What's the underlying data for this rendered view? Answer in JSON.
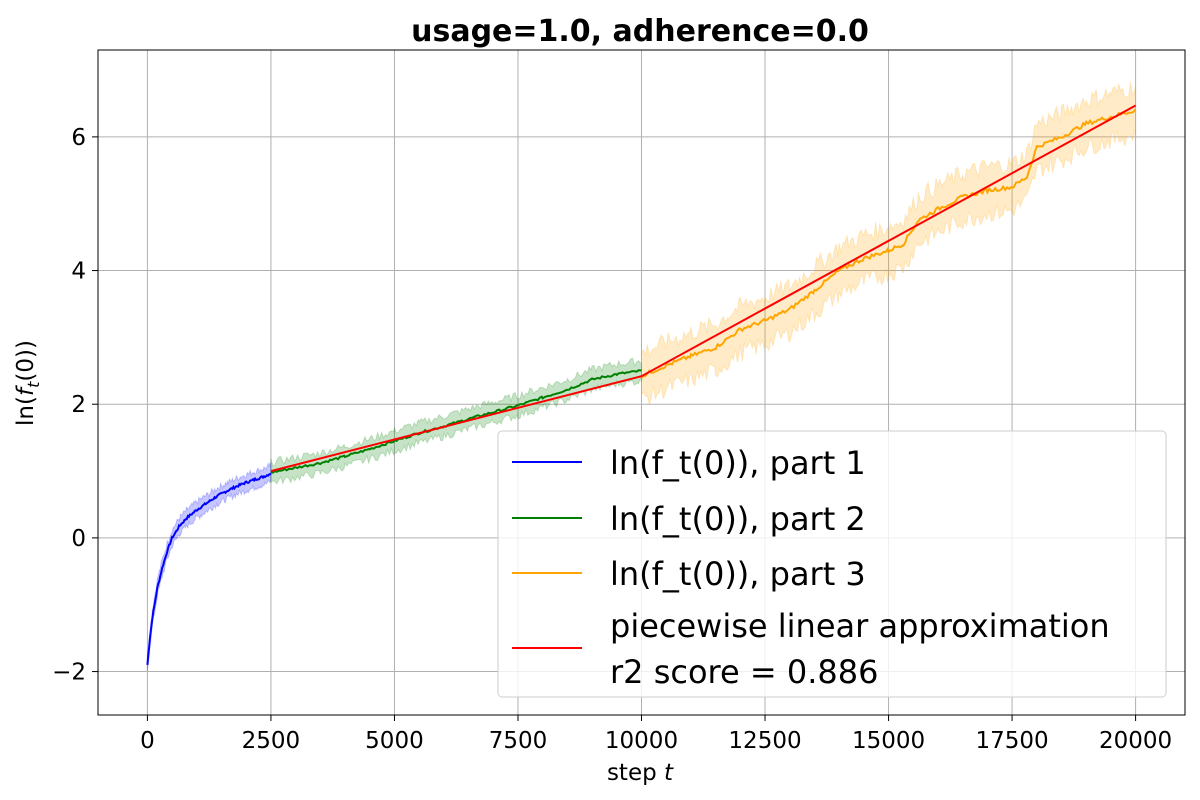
{
  "chart_data": {
    "type": "line",
    "title": "usage=1.0, adherence=0.0",
    "xlabel": "step t",
    "ylabel": "ln(f_t(0))",
    "xlim": [
      -1000,
      21000
    ],
    "ylim": [
      -2.65,
      7.3
    ],
    "xticks": [
      0,
      2500,
      5000,
      7500,
      10000,
      12500,
      15000,
      17500,
      20000
    ],
    "xtick_labels": [
      "0",
      "2500",
      "5000",
      "7500",
      "10000",
      "12500",
      "15000",
      "17500",
      "20000"
    ],
    "yticks": [
      -2,
      0,
      2,
      4,
      6
    ],
    "ytick_labels": [
      "−2",
      "0",
      "2",
      "4",
      "6"
    ],
    "grid": true,
    "legend_position": "lower-right",
    "colors": {
      "part1": "#0000ff",
      "part2": "#008000",
      "part3": "#ffa500",
      "fit": "#ff0000",
      "grid": "#b0b0b0"
    },
    "series": [
      {
        "name": "ln(f_t(0)), part 1",
        "color": "#0000ff",
        "band_width": 0.12,
        "x": [
          0,
          50,
          100,
          200,
          300,
          400,
          500,
          650,
          800,
          1000,
          1200,
          1400,
          1600,
          1800,
          2000,
          2200,
          2400,
          2500
        ],
        "y": [
          -1.9,
          -1.5,
          -1.2,
          -0.75,
          -0.45,
          -0.2,
          0.0,
          0.18,
          0.3,
          0.42,
          0.52,
          0.62,
          0.7,
          0.77,
          0.83,
          0.88,
          0.93,
          0.97
        ]
      },
      {
        "name": "ln(f_t(0)), part 2",
        "color": "#008000",
        "band_width": 0.15,
        "x": [
          2500,
          3000,
          3500,
          4000,
          4500,
          5000,
          5500,
          6000,
          6500,
          7000,
          7500,
          8000,
          8500,
          9000,
          9500,
          10000
        ],
        "y": [
          0.98,
          1.05,
          1.12,
          1.22,
          1.33,
          1.45,
          1.57,
          1.67,
          1.78,
          1.88,
          1.98,
          2.1,
          2.22,
          2.37,
          2.45,
          2.5
        ]
      },
      {
        "name": "ln(f_t(0)), part 3",
        "color": "#ffa500",
        "band_width": 0.35,
        "x": [
          10000,
          10500,
          11000,
          11500,
          12000,
          12500,
          13000,
          13500,
          14000,
          14500,
          15000,
          15300,
          15600,
          16000,
          16500,
          17000,
          17500,
          17800,
          18000,
          18500,
          19000,
          19500,
          20000
        ],
        "y": [
          2.42,
          2.58,
          2.72,
          2.85,
          3.12,
          3.25,
          3.42,
          3.7,
          4.0,
          4.18,
          4.3,
          4.4,
          4.75,
          4.92,
          5.1,
          5.2,
          5.25,
          5.4,
          5.85,
          6.0,
          6.2,
          6.3,
          6.4
        ]
      },
      {
        "name": "piecewise linear approximation\nr2 score = 0.886",
        "color": "#ff0000",
        "x": [
          2500,
          10000,
          20000
        ],
        "y": [
          1.0,
          2.42,
          6.47
        ]
      }
    ],
    "legend": [
      {
        "label": "ln(f_t(0)), part 1",
        "color": "#0000ff"
      },
      {
        "label": "ln(f_t(0)), part 2",
        "color": "#008000"
      },
      {
        "label": "ln(f_t(0)), part 3",
        "color": "#ffa500"
      },
      {
        "label": "piecewise linear approximation",
        "label2": "r2 score = 0.886",
        "color": "#ff0000"
      }
    ]
  }
}
